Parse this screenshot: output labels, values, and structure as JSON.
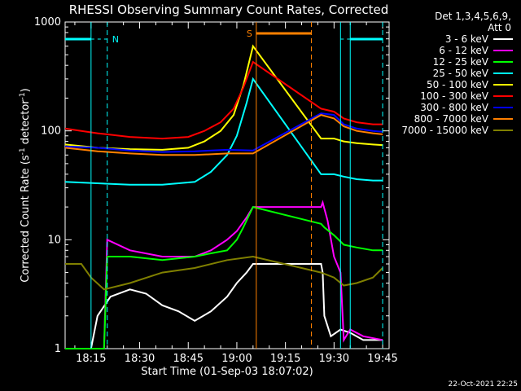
{
  "chart_data": {
    "type": "line",
    "title": "RHESSI Observing Summary Count Rates, Corrected",
    "xlabel": "Start Time (01-Sep-03 18:07:02)",
    "ylabel_main": "Corrected Count Rate (s",
    "ylabel_sup1": "-1",
    "ylabel_mid": " detector",
    "ylabel_sup2": "-1",
    "ylabel_end": ")",
    "x_ticks": [
      "18:15",
      "18:30",
      "18:45",
      "19:00",
      "19:15",
      "19:30",
      "19:45"
    ],
    "x_tick_minutes": [
      8,
      23,
      38,
      53,
      68,
      83,
      98
    ],
    "xlim_minutes": [
      0,
      100
    ],
    "y_scale": "log",
    "ylim": [
      1,
      1000
    ],
    "y_ticks": [
      "1",
      "10",
      "100",
      "1000"
    ],
    "y_tick_values": [
      1,
      10,
      100,
      1000
    ],
    "legend_title_1": "Det 1,3,4,5,6,9,",
    "legend_title_2": "Att 0",
    "legend_placement": "right",
    "series": [
      {
        "name": "3 - 6 keV",
        "color": "#ffffff",
        "points": [
          [
            0,
            1
          ],
          [
            8,
            1
          ],
          [
            10,
            2
          ],
          [
            14,
            3
          ],
          [
            20,
            3.5
          ],
          [
            25,
            3.2
          ],
          [
            30,
            2.5
          ],
          [
            35,
            2.2
          ],
          [
            40,
            1.8
          ],
          [
            45,
            2.2
          ],
          [
            50,
            3
          ],
          [
            53,
            4
          ],
          [
            56,
            5
          ],
          [
            58,
            6
          ],
          [
            79,
            6
          ],
          [
            79.5,
            5
          ],
          [
            80,
            2
          ],
          [
            82,
            1.3
          ],
          [
            85,
            1.5
          ],
          [
            88,
            1.4
          ],
          [
            92,
            1.2
          ],
          [
            98,
            1.2
          ]
        ]
      },
      {
        "name": "6 - 12 keV",
        "color": "#ff00ff",
        "points": [
          [
            0,
            1
          ],
          [
            12,
            1
          ],
          [
            13,
            10
          ],
          [
            20,
            8
          ],
          [
            30,
            7
          ],
          [
            40,
            7
          ],
          [
            45,
            8
          ],
          [
            50,
            10
          ],
          [
            53,
            12
          ],
          [
            56,
            16
          ],
          [
            58,
            20
          ],
          [
            79,
            20
          ],
          [
            79.5,
            22
          ],
          [
            81,
            15
          ],
          [
            83,
            7
          ],
          [
            85,
            5
          ],
          [
            86,
            1.2
          ],
          [
            88,
            1.5
          ],
          [
            92,
            1.3
          ],
          [
            98,
            1.2
          ]
        ]
      },
      {
        "name": "12 - 25 keV",
        "color": "#00ff00",
        "points": [
          [
            0,
            1
          ],
          [
            12,
            1
          ],
          [
            13,
            7
          ],
          [
            20,
            7
          ],
          [
            30,
            6.5
          ],
          [
            40,
            7
          ],
          [
            45,
            7.5
          ],
          [
            50,
            8
          ],
          [
            53,
            10
          ],
          [
            55,
            13
          ],
          [
            58,
            20
          ],
          [
            79,
            14
          ],
          [
            80,
            13
          ],
          [
            83,
            11
          ],
          [
            86,
            9
          ],
          [
            90,
            8.5
          ],
          [
            95,
            8
          ],
          [
            98,
            8
          ]
        ]
      },
      {
        "name": "25 - 50 keV",
        "color": "#00ffff",
        "points": [
          [
            0,
            34
          ],
          [
            10,
            33
          ],
          [
            20,
            32
          ],
          [
            30,
            32
          ],
          [
            40,
            34
          ],
          [
            45,
            42
          ],
          [
            50,
            60
          ],
          [
            53,
            90
          ],
          [
            56,
            180
          ],
          [
            58,
            300
          ],
          [
            79,
            40
          ],
          [
            83,
            40
          ],
          [
            86,
            38
          ],
          [
            90,
            36
          ],
          [
            95,
            35
          ],
          [
            98,
            35
          ]
        ]
      },
      {
        "name": "50 - 100 keV",
        "color": "#ffff00",
        "points": [
          [
            0,
            75
          ],
          [
            10,
            70
          ],
          [
            20,
            68
          ],
          [
            30,
            67
          ],
          [
            38,
            70
          ],
          [
            43,
            80
          ],
          [
            48,
            100
          ],
          [
            52,
            140
          ],
          [
            55,
            260
          ],
          [
            58,
            600
          ],
          [
            79,
            85
          ],
          [
            83,
            85
          ],
          [
            86,
            80
          ],
          [
            90,
            77
          ],
          [
            95,
            75
          ],
          [
            98,
            74
          ]
        ]
      },
      {
        "name": "100 - 300 keV",
        "color": "#ff0000",
        "points": [
          [
            0,
            105
          ],
          [
            5,
            100
          ],
          [
            10,
            95
          ],
          [
            20,
            88
          ],
          [
            30,
            85
          ],
          [
            38,
            88
          ],
          [
            43,
            100
          ],
          [
            48,
            120
          ],
          [
            52,
            160
          ],
          [
            55,
            250
          ],
          [
            58,
            430
          ],
          [
            79,
            160
          ],
          [
            83,
            150
          ],
          [
            86,
            130
          ],
          [
            90,
            120
          ],
          [
            95,
            115
          ],
          [
            98,
            115
          ]
        ]
      },
      {
        "name": "300 - 800 keV",
        "color": "#0000ff",
        "points": [
          [
            0,
            72
          ],
          [
            10,
            70
          ],
          [
            20,
            66
          ],
          [
            30,
            64
          ],
          [
            40,
            65
          ],
          [
            50,
            67
          ],
          [
            58,
            66
          ],
          [
            79,
            145
          ],
          [
            83,
            140
          ],
          [
            86,
            115
          ],
          [
            90,
            105
          ],
          [
            95,
            100
          ],
          [
            98,
            98
          ]
        ]
      },
      {
        "name": "800 - 7000 keV",
        "color": "#ff8000",
        "points": [
          [
            0,
            70
          ],
          [
            10,
            65
          ],
          [
            20,
            62
          ],
          [
            30,
            60
          ],
          [
            40,
            60
          ],
          [
            50,
            62
          ],
          [
            58,
            62
          ],
          [
            79,
            140
          ],
          [
            83,
            130
          ],
          [
            86,
            110
          ],
          [
            90,
            100
          ],
          [
            95,
            95
          ],
          [
            98,
            93
          ]
        ]
      },
      {
        "name": "7000 - 15000 keV",
        "color": "#808000",
        "points": [
          [
            0,
            6
          ],
          [
            5,
            6
          ],
          [
            8,
            4.5
          ],
          [
            12,
            3.5
          ],
          [
            20,
            4
          ],
          [
            30,
            5
          ],
          [
            40,
            5.5
          ],
          [
            50,
            6.5
          ],
          [
            58,
            7
          ],
          [
            79,
            5
          ],
          [
            83,
            4.5
          ],
          [
            86,
            3.8
          ],
          [
            90,
            4
          ],
          [
            95,
            4.5
          ],
          [
            98,
            5.5
          ]
        ]
      }
    ],
    "annotations": [
      {
        "label": "N",
        "color": "#00ffff"
      },
      {
        "label": "S",
        "color": "#ff8000"
      }
    ],
    "bars": [
      {
        "color": "#00ffff",
        "segments": [
          [
            0,
            8,
            "solid"
          ],
          [
            8,
            13,
            "dashed"
          ],
          [
            85,
            88,
            "dashed"
          ],
          [
            88,
            98,
            "solid"
          ]
        ],
        "edges": [
          8,
          13,
          85,
          88,
          98
        ]
      },
      {
        "color": "#ff8000",
        "segments": [
          [
            59,
            76,
            "solid"
          ]
        ],
        "edges": [
          59,
          76
        ]
      }
    ]
  },
  "footer_timestamp": "22-Oct-2021 22:25"
}
